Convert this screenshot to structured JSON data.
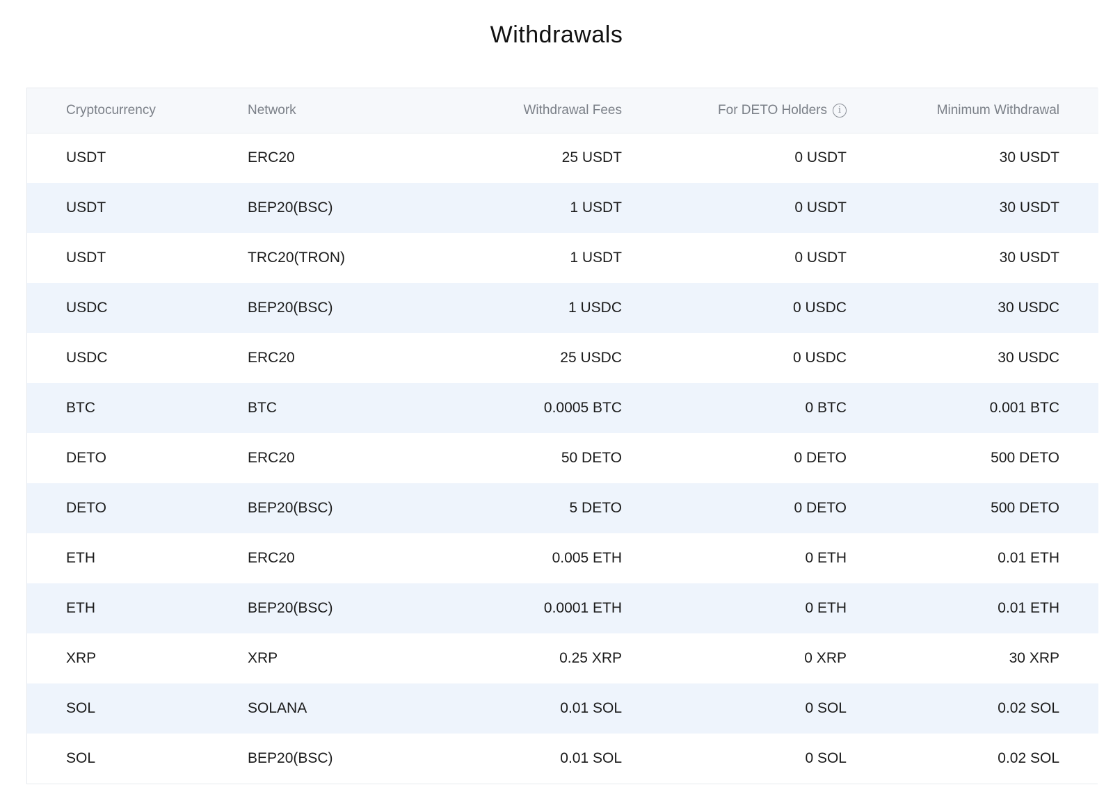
{
  "page": {
    "title": "Withdrawals"
  },
  "table": {
    "headers": {
      "cryptocurrency": "Cryptocurrency",
      "network": "Network",
      "withdrawal_fees": "Withdrawal Fees",
      "for_deto_holders": "For DETO Holders",
      "minimum_withdrawal": "Minimum Withdrawal"
    },
    "info_icon_glyph": "i",
    "rows": [
      {
        "crypto": "USDT",
        "network": "ERC20",
        "fee": "25 USDT",
        "holder_fee": "0 USDT",
        "minimum": "30 USDT"
      },
      {
        "crypto": "USDT",
        "network": "BEP20(BSC)",
        "fee": "1 USDT",
        "holder_fee": "0 USDT",
        "minimum": "30 USDT"
      },
      {
        "crypto": "USDT",
        "network": "TRC20(TRON)",
        "fee": "1 USDT",
        "holder_fee": "0 USDT",
        "minimum": "30 USDT"
      },
      {
        "crypto": "USDC",
        "network": "BEP20(BSC)",
        "fee": "1 USDC",
        "holder_fee": "0 USDC",
        "minimum": "30 USDC"
      },
      {
        "crypto": "USDC",
        "network": "ERC20",
        "fee": "25 USDC",
        "holder_fee": "0 USDC",
        "minimum": "30 USDC"
      },
      {
        "crypto": "BTC",
        "network": "BTC",
        "fee": "0.0005 BTC",
        "holder_fee": "0 BTC",
        "minimum": "0.001 BTC"
      },
      {
        "crypto": "DETO",
        "network": "ERC20",
        "fee": "50 DETO",
        "holder_fee": "0 DETO",
        "minimum": "500 DETO"
      },
      {
        "crypto": "DETO",
        "network": "BEP20(BSC)",
        "fee": "5 DETO",
        "holder_fee": "0 DETO",
        "minimum": "500 DETO"
      },
      {
        "crypto": "ETH",
        "network": "ERC20",
        "fee": "0.005 ETH",
        "holder_fee": "0 ETH",
        "minimum": "0.01 ETH"
      },
      {
        "crypto": "ETH",
        "network": "BEP20(BSC)",
        "fee": "0.0001 ETH",
        "holder_fee": "0 ETH",
        "minimum": "0.01 ETH"
      },
      {
        "crypto": "XRP",
        "network": "XRP",
        "fee": "0.25 XRP",
        "holder_fee": "0 XRP",
        "minimum": "30 XRP"
      },
      {
        "crypto": "SOL",
        "network": "SOLANA",
        "fee": "0.01 SOL",
        "holder_fee": "0 SOL",
        "minimum": "0.02 SOL"
      },
      {
        "crypto": "SOL",
        "network": "BEP20(BSC)",
        "fee": "0.01 SOL",
        "holder_fee": "0 SOL",
        "minimum": "0.02 SOL"
      }
    ]
  },
  "colors": {
    "header_bg": "#f6f8fb",
    "row_stripe": "#eef4fc",
    "header_text": "#7a7f87",
    "body_text": "#1a1a1a"
  }
}
